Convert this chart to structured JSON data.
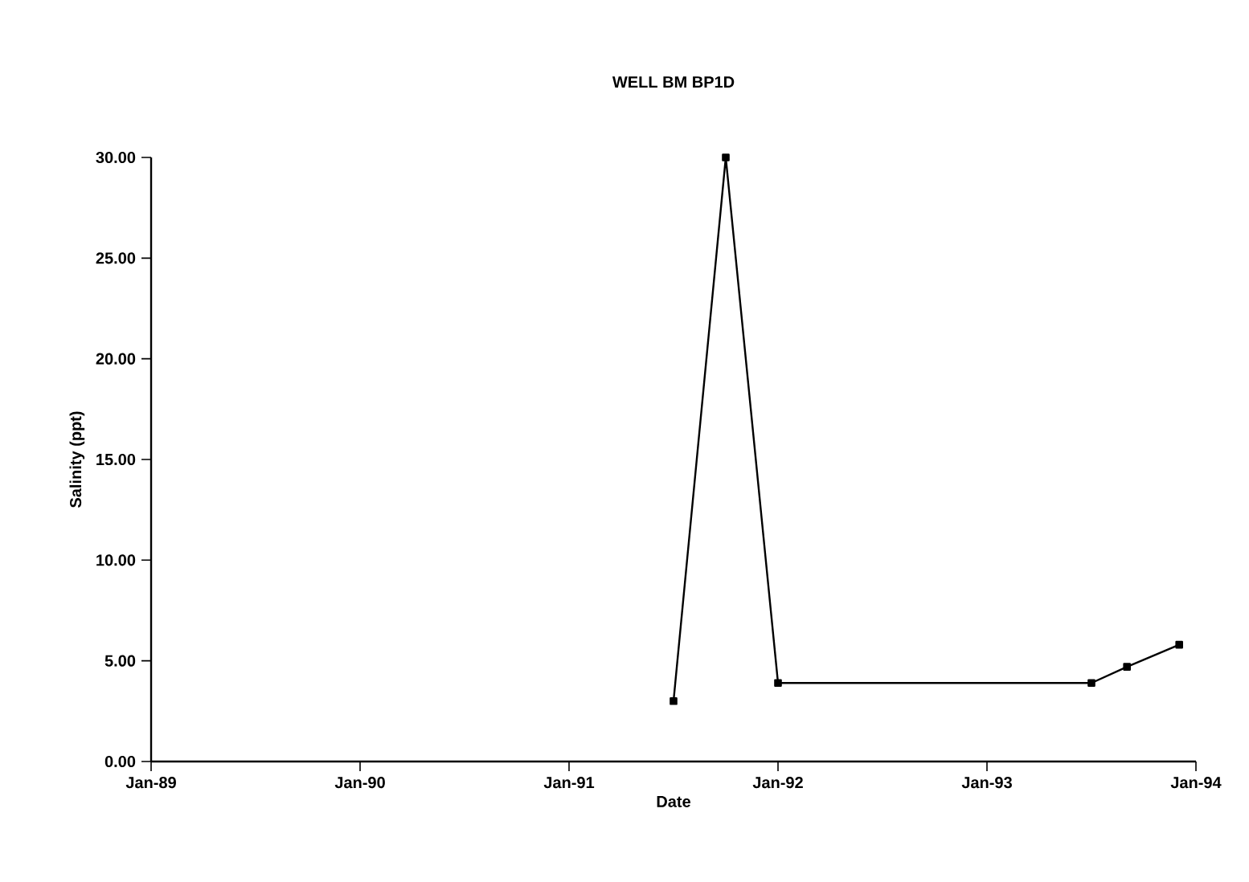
{
  "chart_data": {
    "type": "line",
    "title": "WELL BM BP1D",
    "xlabel": "Date",
    "ylabel": "Salinity (ppt)",
    "x": [
      "1991-07",
      "1991-10",
      "1992-01",
      "1993-07",
      "1993-09",
      "1993-12"
    ],
    "series": [
      {
        "color": "#000000",
        "values": [
          3.0,
          30.0,
          3.9,
          3.9,
          4.7,
          5.8
        ]
      }
    ],
    "xlim": [
      "1989-01",
      "1994-01"
    ],
    "xticks": [
      {
        "value": "1989-01",
        "label": "Jan-89"
      },
      {
        "value": "1990-01",
        "label": "Jan-90"
      },
      {
        "value": "1991-01",
        "label": "Jan-91"
      },
      {
        "value": "1992-01",
        "label": "Jan-92"
      },
      {
        "value": "1993-01",
        "label": "Jan-93"
      },
      {
        "value": "1994-01",
        "label": "Jan-94"
      }
    ],
    "ylim": [
      0,
      30
    ],
    "yticks": [
      {
        "value": 0,
        "label": "0.00"
      },
      {
        "value": 5,
        "label": "5.00"
      },
      {
        "value": 10,
        "label": "10.00"
      },
      {
        "value": 15,
        "label": "15.00"
      },
      {
        "value": 20,
        "label": "20.00"
      },
      {
        "value": 25,
        "label": "25.00"
      },
      {
        "value": 30,
        "label": "30.00"
      }
    ],
    "marker": "square",
    "line_style": "solid",
    "grid": false
  }
}
